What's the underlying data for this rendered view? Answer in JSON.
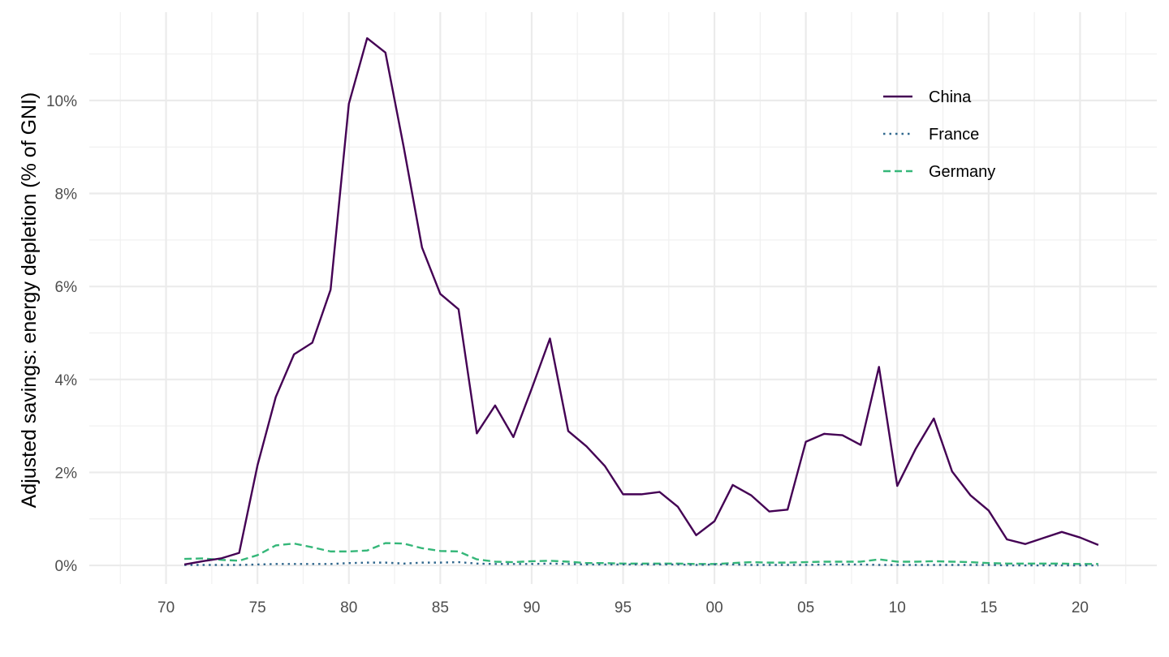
{
  "chart_data": {
    "type": "line",
    "ylabel": "Adjusted savings: energy depletion (% of GNI)",
    "xlabel": "",
    "xlim": [
      1965.8,
      2024.2
    ],
    "ylim": [
      -0.4,
      11.9
    ],
    "x_ticks": [
      {
        "value": 1970,
        "label": "70"
      },
      {
        "value": 1975,
        "label": "75"
      },
      {
        "value": 1980,
        "label": "80"
      },
      {
        "value": 1985,
        "label": "85"
      },
      {
        "value": 1990,
        "label": "90"
      },
      {
        "value": 1995,
        "label": "95"
      },
      {
        "value": 2000,
        "label": "00"
      },
      {
        "value": 2005,
        "label": "05"
      },
      {
        "value": 2010,
        "label": "10"
      },
      {
        "value": 2015,
        "label": "15"
      },
      {
        "value": 2020,
        "label": "20"
      }
    ],
    "y_ticks": [
      {
        "value": 0,
        "label": "0%"
      },
      {
        "value": 2,
        "label": "2%"
      },
      {
        "value": 4,
        "label": "4%"
      },
      {
        "value": 6,
        "label": "6%"
      },
      {
        "value": 8,
        "label": "8%"
      },
      {
        "value": 10,
        "label": "10%"
      }
    ],
    "grid": true,
    "legend_position": "top-right",
    "x": [
      1971,
      1972,
      1973,
      1974,
      1975,
      1976,
      1977,
      1978,
      1979,
      1980,
      1981,
      1982,
      1983,
      1984,
      1985,
      1986,
      1987,
      1988,
      1989,
      1990,
      1991,
      1992,
      1993,
      1994,
      1995,
      1996,
      1997,
      1998,
      1999,
      2000,
      2001,
      2002,
      2003,
      2004,
      2005,
      2006,
      2007,
      2008,
      2009,
      2010,
      2011,
      2012,
      2013,
      2014,
      2015,
      2016,
      2017,
      2018,
      2019,
      2020,
      2021
    ],
    "series": [
      {
        "name": "China",
        "color": "#440154",
        "dash": "solid",
        "values": [
          0.02,
          0.09,
          0.15,
          0.27,
          2.15,
          3.62,
          4.54,
          4.79,
          5.93,
          9.93,
          11.34,
          11.03,
          9.0,
          6.84,
          5.84,
          5.51,
          2.84,
          3.44,
          2.76,
          3.8,
          4.88,
          2.89,
          2.56,
          2.14,
          1.53,
          1.53,
          1.58,
          1.26,
          0.65,
          0.95,
          1.73,
          1.51,
          1.16,
          1.2,
          2.66,
          2.83,
          2.8,
          2.59,
          4.27,
          1.71,
          2.5,
          3.16,
          2.02,
          1.51,
          1.18,
          0.56,
          0.46,
          0.59,
          0.72,
          0.6,
          0.44
        ]
      },
      {
        "name": "France",
        "color": "#31688e",
        "dash": "dotted",
        "values": [
          0.01,
          0.01,
          0.01,
          0.01,
          0.02,
          0.03,
          0.03,
          0.03,
          0.03,
          0.05,
          0.06,
          0.06,
          0.04,
          0.06,
          0.06,
          0.07,
          0.04,
          0.03,
          0.03,
          0.03,
          0.04,
          0.03,
          0.02,
          0.02,
          0.02,
          0.02,
          0.02,
          0.02,
          0.01,
          0.02,
          0.02,
          0.01,
          0.01,
          0.01,
          0.01,
          0.02,
          0.02,
          0.02,
          0.01,
          0.01,
          0.01,
          0.01,
          0.01,
          0.01,
          0.01,
          0.0,
          0.0,
          0.0,
          0.0,
          0.0,
          0.0
        ]
      },
      {
        "name": "Germany",
        "color": "#35b779",
        "dash": "dashed",
        "values": [
          0.14,
          0.15,
          0.12,
          0.1,
          0.22,
          0.43,
          0.47,
          0.39,
          0.3,
          0.3,
          0.32,
          0.48,
          0.47,
          0.37,
          0.31,
          0.3,
          0.13,
          0.08,
          0.07,
          0.09,
          0.1,
          0.08,
          0.05,
          0.05,
          0.04,
          0.04,
          0.04,
          0.04,
          0.03,
          0.03,
          0.05,
          0.07,
          0.06,
          0.06,
          0.07,
          0.08,
          0.08,
          0.08,
          0.13,
          0.08,
          0.08,
          0.09,
          0.08,
          0.07,
          0.05,
          0.04,
          0.04,
          0.04,
          0.04,
          0.03,
          0.03
        ]
      }
    ]
  }
}
